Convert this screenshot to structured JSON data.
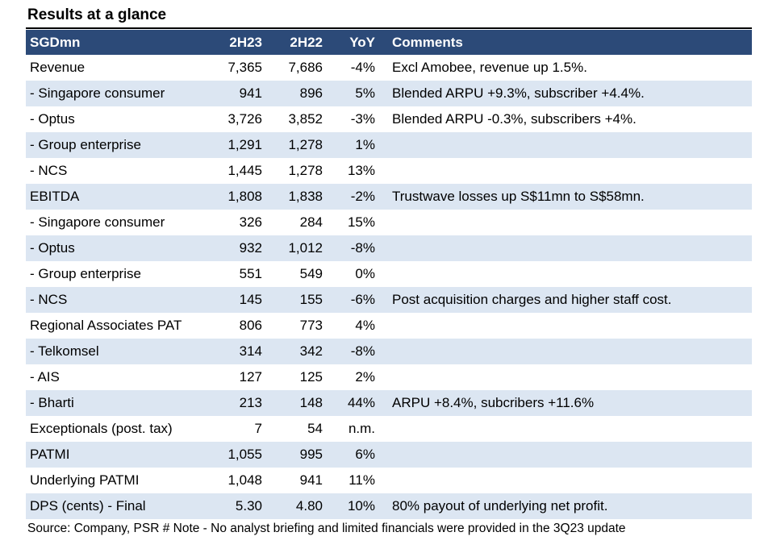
{
  "title": "Results at a glance",
  "table": {
    "headers": [
      "SGDmn",
      "2H23",
      "2H22",
      "YoY",
      "Comments"
    ],
    "rows": [
      {
        "label": "Revenue",
        "h23": "7,365",
        "h22": "7,686",
        "yoy": "-4%",
        "comment": "Excl Amobee, revenue up 1.5%."
      },
      {
        "label": " - Singapore consumer",
        "h23": "941",
        "h22": "896",
        "yoy": "5%",
        "comment": "Blended ARPU +9.3%, subscriber +4.4%."
      },
      {
        "label": " - Optus",
        "h23": "3,726",
        "h22": "3,852",
        "yoy": "-3%",
        "comment": "Blended ARPU -0.3%, subscribers +4%."
      },
      {
        "label": " - Group enterprise",
        "h23": "1,291",
        "h22": "1,278",
        "yoy": "1%",
        "comment": ""
      },
      {
        "label": " - NCS",
        "h23": "1,445",
        "h22": "1,278",
        "yoy": "13%",
        "comment": ""
      },
      {
        "label": "EBITDA",
        "h23": "1,808",
        "h22": "1,838",
        "yoy": "-2%",
        "comment": "Trustwave losses up S$11mn to S$58mn."
      },
      {
        "label": " - Singapore consumer",
        "h23": "326",
        "h22": "284",
        "yoy": "15%",
        "comment": ""
      },
      {
        "label": " - Optus",
        "h23": "932",
        "h22": "1,012",
        "yoy": "-8%",
        "comment": ""
      },
      {
        "label": " - Group enterprise",
        "h23": "551",
        "h22": "549",
        "yoy": "0%",
        "comment": ""
      },
      {
        "label": " - NCS",
        "h23": "145",
        "h22": "155",
        "yoy": "-6%",
        "comment": "Post acquisition charges and higher staff cost."
      },
      {
        "label": "Regional Associates PAT",
        "h23": "806",
        "h22": "773",
        "yoy": "4%",
        "comment": ""
      },
      {
        "label": " - Telkomsel",
        "h23": "314",
        "h22": "342",
        "yoy": "-8%",
        "comment": ""
      },
      {
        "label": " - AIS",
        "h23": "127",
        "h22": "125",
        "yoy": "2%",
        "comment": ""
      },
      {
        "label": " - Bharti",
        "h23": "213",
        "h22": "148",
        "yoy": "44%",
        "comment": "ARPU +8.4%, subcribers +11.6%"
      },
      {
        "label": "Exceptionals (post. tax)",
        "h23": "7",
        "h22": "54",
        "yoy": "n.m.",
        "comment": ""
      },
      {
        "label": "PATMI",
        "h23": "1,055",
        "h22": "995",
        "yoy": "6%",
        "comment": ""
      },
      {
        "label": "Underlying PATMI",
        "h23": "1,048",
        "h22": "941",
        "yoy": "11%",
        "comment": ""
      },
      {
        "label": "DPS (cents)  - Final",
        "h23": "5.30",
        "h22": "4.80",
        "yoy": "10%",
        "comment": "80% payout of underlying net profit."
      }
    ]
  },
  "source": "Source: Company, PSR # Note - No analyst briefing and limited financials were provided in the 3Q23 update",
  "colors": {
    "header_bg": "#2c4a78",
    "header_text": "#ffffff",
    "alt_row": "#dce6f2"
  }
}
